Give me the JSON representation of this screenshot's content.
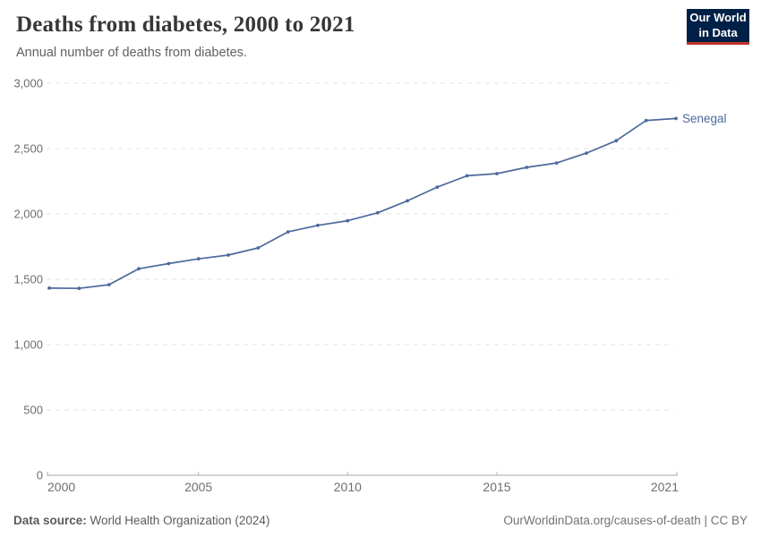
{
  "header": {
    "title": "Deaths from diabetes, 2000 to 2021",
    "subtitle": "Annual number of deaths from diabetes.",
    "logo": {
      "line1": "Our World",
      "line2": "in Data"
    }
  },
  "chart_data": {
    "type": "line",
    "title": "Deaths from diabetes, 2000 to 2021",
    "subtitle": "Annual number of deaths from diabetes.",
    "x": [
      2000,
      2001,
      2002,
      2003,
      2004,
      2005,
      2006,
      2007,
      2008,
      2009,
      2010,
      2011,
      2012,
      2013,
      2014,
      2015,
      2016,
      2017,
      2018,
      2019,
      2020,
      2021
    ],
    "series": [
      {
        "name": "Senegal",
        "values": [
          1432,
          1430,
          1458,
          1580,
          1620,
          1656,
          1685,
          1740,
          1862,
          1912,
          1948,
          2008,
          2100,
          2205,
          2292,
          2308,
          2356,
          2390,
          2465,
          2560,
          2715,
          2730
        ]
      }
    ],
    "xlabel": "",
    "ylabel": "",
    "ylim": [
      0,
      3000
    ],
    "xlim": [
      2000,
      2021
    ],
    "yticks": [
      0,
      500,
      1000,
      1500,
      2000,
      2500,
      3000
    ],
    "ytick_labels": [
      "0",
      "500",
      "1,000",
      "1,500",
      "2,000",
      "2,500",
      "3,000"
    ],
    "xticks": [
      2000,
      2005,
      2010,
      2015,
      2021
    ],
    "xtick_labels": [
      "2000",
      "2005",
      "2010",
      "2015",
      "2021"
    ],
    "grid": "horizontal-dashed",
    "legend_position": "end-of-line-label"
  },
  "footer": {
    "source_label": "Data source:",
    "source_value": " World Health Organization (2024)",
    "credit": "OurWorldinData.org/causes-of-death | CC BY"
  },
  "colors": {
    "line": "#4C6A9C",
    "grid": "#e0e0e0",
    "axis": "#a5a5a5",
    "tick": "#b5b5b5",
    "tick_text": "#6e6e6e",
    "title": "#383636",
    "subtitle": "#616161",
    "footer_text": "#5b5b5b",
    "credit_text": "#737373",
    "logo_bg": "#002147",
    "logo_bar": "#c0342b"
  }
}
